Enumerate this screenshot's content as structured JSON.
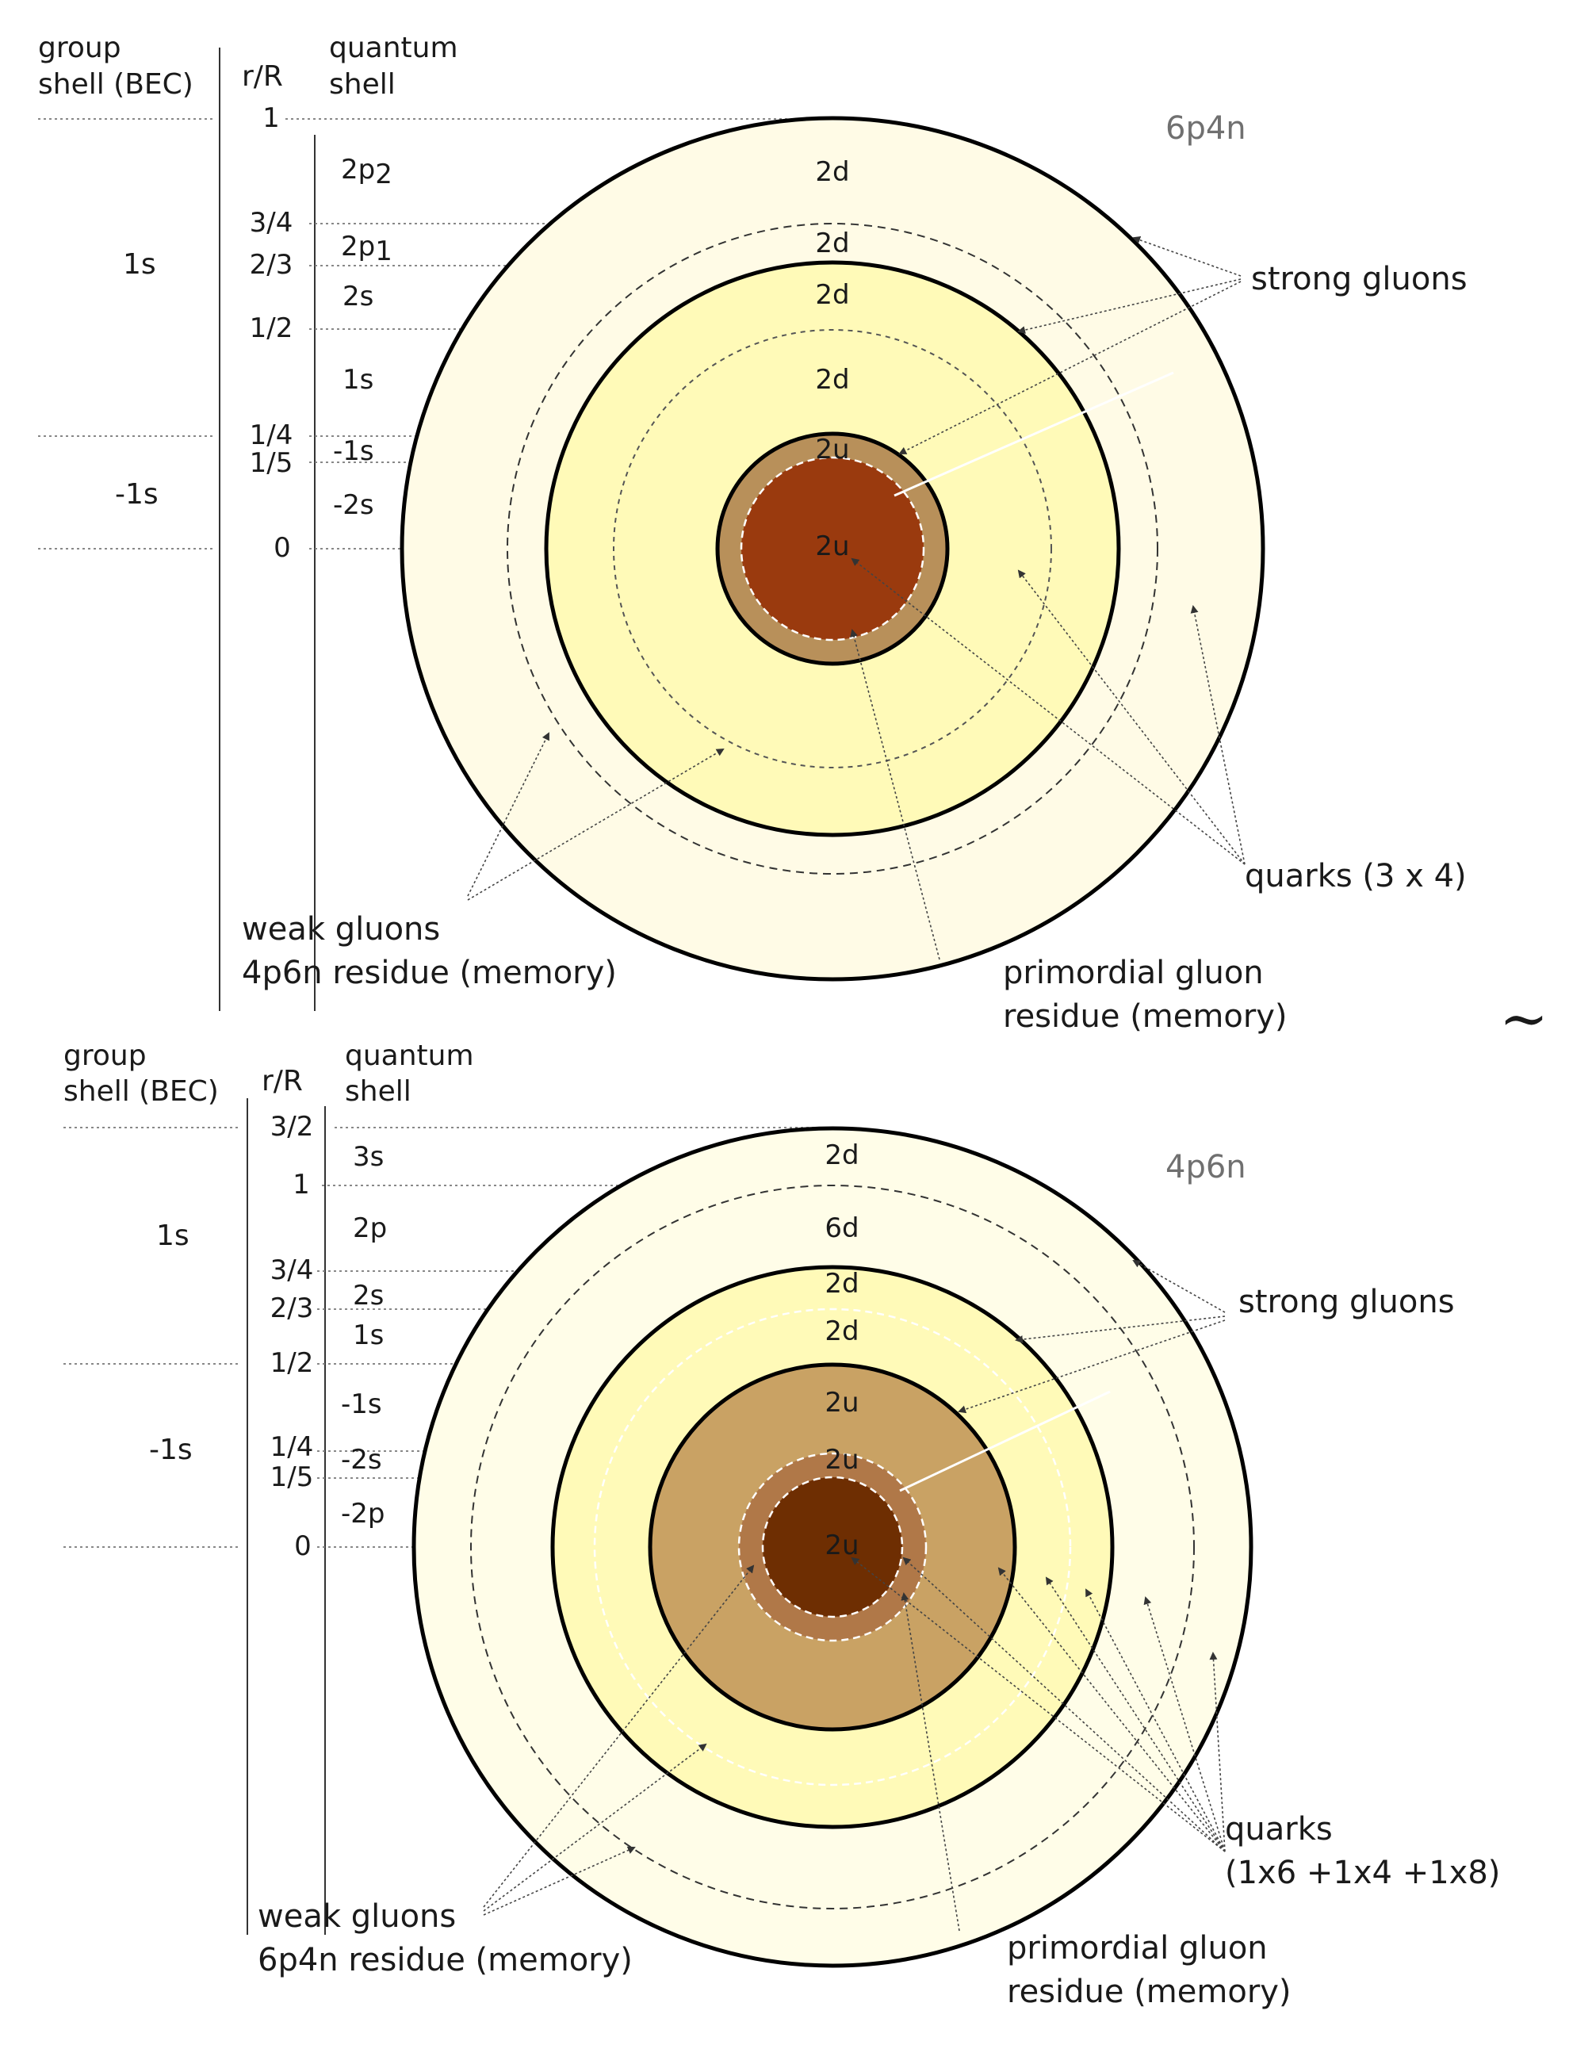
{
  "tilde": "∼",
  "panels": [
    {
      "id": "top",
      "title": "6p4n",
      "headers": {
        "group_shell": [
          "group",
          "shell (BEC)"
        ],
        "rR": "r/R",
        "quantum_shell": [
          "quantum",
          "shell"
        ]
      },
      "group_shells": [
        "1s",
        "-1s"
      ],
      "rR_labels": [
        "1",
        "3/4",
        "2/3",
        "1/2",
        "1/4",
        "1/5",
        "0"
      ],
      "quantum_shells": [
        [
          "2p",
          "2"
        ],
        [
          "2p",
          "1"
        ],
        [
          "2s",
          ""
        ],
        [
          "1s",
          ""
        ],
        [
          "-1s",
          ""
        ],
        [
          "-2s",
          ""
        ]
      ],
      "ring_labels": [
        "2d",
        "2d",
        "2d",
        "2d",
        "2u",
        "2u"
      ],
      "annotations": {
        "strong": [
          "strong gluons"
        ],
        "quarks": [
          "quarks (3 x 4)"
        ],
        "weak": [
          "weak gluons",
          "4p6n residue (memory)"
        ],
        "primordial": [
          "primordial gluon",
          "residue (memory)"
        ]
      },
      "colors": {
        "outer": "#fffbe6",
        "mid": "#fffab8",
        "ring": "#b8905a",
        "core": "#9a3a0e"
      }
    },
    {
      "id": "bottom",
      "title": "4p6n",
      "headers": {
        "group_shell": [
          "group",
          "shell (BEC)"
        ],
        "rR": "r/R",
        "quantum_shell": [
          "quantum",
          "shell"
        ]
      },
      "group_shells": [
        "1s",
        "-1s"
      ],
      "rR_labels": [
        "3/2",
        "1",
        "3/4",
        "2/3",
        "1/2",
        "1/4",
        "1/5",
        "0"
      ],
      "quantum_shells": [
        [
          "3s",
          ""
        ],
        [
          "2p",
          ""
        ],
        [
          "2s",
          ""
        ],
        [
          "1s",
          ""
        ],
        [
          "-1s",
          ""
        ],
        [
          "-2s",
          ""
        ],
        [
          "-2p",
          ""
        ]
      ],
      "ring_labels": [
        "2d",
        "6d",
        "2d",
        "2d",
        "2u",
        "2u",
        "2u"
      ],
      "annotations": {
        "strong": [
          "strong gluons"
        ],
        "quarks": [
          "quarks",
          "(1x6 +1x4 +1x8)"
        ],
        "weak": [
          "weak gluons",
          "6p4n residue (memory)"
        ],
        "primordial": [
          "primordial gluon",
          "residue (memory)"
        ]
      },
      "colors": {
        "outer": "#fffde8",
        "mid": "#fffab8",
        "inner": "#c9a264",
        "ring": "#b07848",
        "core": "#6e2e02"
      }
    }
  ]
}
